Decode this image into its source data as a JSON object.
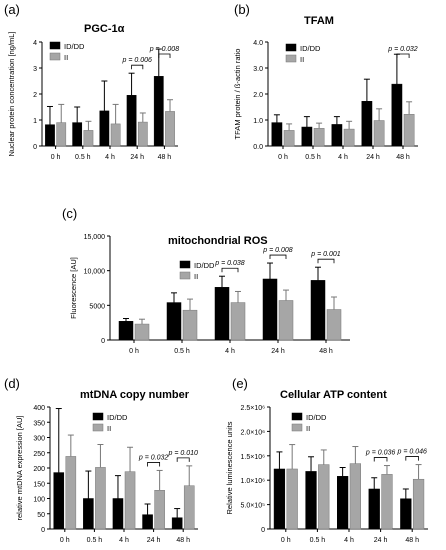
{
  "chart_data": [
    {
      "panel": "(a)",
      "type": "bar",
      "title": "PGC-1α",
      "ylabel": "Nuclear protein concentration [ng/mL]",
      "xlabel": "",
      "categories": [
        "0 h",
        "0.5 h",
        "4 h",
        "24 h",
        "48 h"
      ],
      "ylim": [
        0,
        4
      ],
      "yticks": [
        "0",
        "1",
        "2",
        "3",
        "4"
      ],
      "grid": false,
      "legend_position": "top-left",
      "series": [
        {
          "name": "ID/DD",
          "color": "#000000",
          "values": [
            0.82,
            0.9,
            1.35,
            1.95,
            2.68
          ],
          "errors": [
            0.7,
            0.6,
            1.15,
            0.85,
            1.05
          ]
        },
        {
          "name": "II",
          "color": "#a6a6a6",
          "values": [
            0.9,
            0.6,
            0.85,
            0.92,
            1.33
          ],
          "errors": [
            0.7,
            0.35,
            0.75,
            0.35,
            0.45
          ]
        }
      ],
      "annotations": [
        {
          "label": "p = 0.006",
          "category_index": 3
        },
        {
          "label": "p = 0.008",
          "category_index": 4
        }
      ]
    },
    {
      "panel": "(b)",
      "type": "bar",
      "title": "TFAM",
      "ylabel": "TFAM protein / ß-actin ratio",
      "xlabel": "",
      "categories": [
        "0 h",
        "0.5 h",
        "4 h",
        "24 h",
        "48 h"
      ],
      "ylim": [
        0,
        4
      ],
      "yticks": [
        "0.0",
        "1.0",
        "2.0",
        "3.0",
        "4.0"
      ],
      "grid": false,
      "legend_position": "top-left",
      "series": [
        {
          "name": "ID/DD",
          "color": "#000000",
          "values": [
            0.9,
            0.73,
            0.83,
            1.72,
            2.38
          ],
          "errors": [
            0.3,
            0.4,
            0.3,
            0.85,
            1.15
          ]
        },
        {
          "name": "II",
          "color": "#a6a6a6",
          "values": [
            0.6,
            0.68,
            0.65,
            0.98,
            1.22
          ],
          "errors": [
            0.25,
            0.2,
            0.3,
            0.45,
            0.48
          ]
        }
      ],
      "annotations": [
        {
          "label": "p = 0.032",
          "category_index": 4
        }
      ]
    },
    {
      "panel": "(c)",
      "type": "bar",
      "title": "mitochondrial ROS",
      "ylabel": "Fluorescence [AU]",
      "xlabel": "",
      "categories": [
        "0 h",
        "0.5 h",
        "4 h",
        "24 h",
        "48 h"
      ],
      "ylim": [
        0,
        15000
      ],
      "yticks": [
        "0",
        "5000",
        "10,000",
        "15,000"
      ],
      "grid": false,
      "legend_position": "top-left",
      "series": [
        {
          "name": "ID/DD",
          "color": "#000000",
          "values": [
            2700,
            5400,
            7600,
            8800,
            8600
          ],
          "errors": [
            400,
            1400,
            1600,
            2300,
            1900
          ]
        },
        {
          "name": "II",
          "color": "#a6a6a6",
          "values": [
            2300,
            4300,
            5400,
            5700,
            4400
          ],
          "errors": [
            700,
            1600,
            1600,
            1500,
            1800
          ]
        }
      ],
      "annotations": [
        {
          "label": "p = 0.038",
          "category_index": 2
        },
        {
          "label": "p = 0.008",
          "category_index": 3
        },
        {
          "label": "p = 0.001",
          "category_index": 4
        }
      ]
    },
    {
      "panel": "(d)",
      "type": "bar",
      "title": "mtDNA copy number",
      "ylabel": "relative mtDNA expression [AU]",
      "xlabel": "",
      "categories": [
        "0 h",
        "0.5 h",
        "4 h",
        "24 h",
        "48 h"
      ],
      "ylim": [
        0,
        400
      ],
      "yticks": [
        "0",
        "50",
        "100",
        "150",
        "200",
        "250",
        "300",
        "350",
        "400"
      ],
      "grid": false,
      "legend_position": "top-left",
      "series": [
        {
          "name": "ID/DD",
          "color": "#000000",
          "values": [
            185,
            100,
            100,
            47,
            37
          ],
          "errors": [
            210,
            90,
            75,
            35,
            30
          ]
        },
        {
          "name": "II",
          "color": "#a6a6a6",
          "values": [
            238,
            202,
            188,
            127,
            142
          ],
          "errors": [
            70,
            75,
            80,
            65,
            65
          ]
        }
      ],
      "annotations": [
        {
          "label": "p = 0.032",
          "category_index": 3
        },
        {
          "label": "p = 0.010",
          "category_index": 4
        }
      ]
    },
    {
      "panel": "(e)",
      "type": "bar",
      "title": "Cellular ATP content",
      "ylabel": "Relative luminescence units",
      "xlabel": "",
      "categories": [
        "0 h",
        "0.5 h",
        "4 h",
        "24 h",
        "48 h"
      ],
      "ylim": [
        0,
        2500000
      ],
      "yticks": [
        "0",
        "5.0×10⁵",
        "1.0×10⁶",
        "1.5×10⁶",
        "2.0×10⁶",
        "2.5×10⁶"
      ],
      "grid": false,
      "legend_position": "top-left",
      "series": [
        {
          "name": "ID/DD",
          "color": "#000000",
          "values": [
            1230000,
            1180000,
            1080000,
            820000,
            620000
          ],
          "errors": [
            350000,
            300000,
            180000,
            230000,
            200000
          ]
        },
        {
          "name": "II",
          "color": "#a6a6a6",
          "values": [
            1230000,
            1320000,
            1340000,
            1120000,
            1020000
          ],
          "errors": [
            500000,
            300000,
            350000,
            180000,
            300000
          ]
        }
      ],
      "annotations": [
        {
          "label": "p = 0.036",
          "category_index": 3
        },
        {
          "label": "p = 0.046",
          "category_index": 4
        }
      ]
    }
  ]
}
